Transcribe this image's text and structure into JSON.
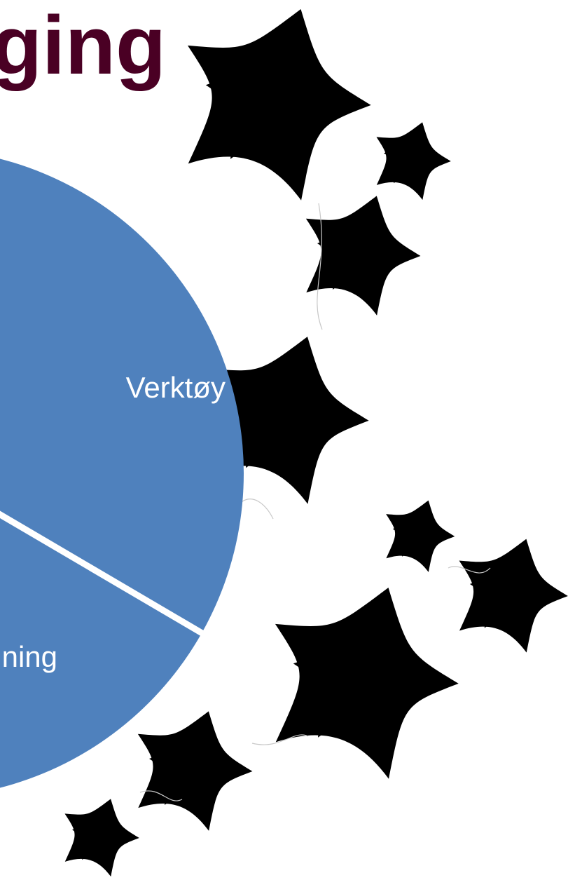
{
  "header": {
    "title": "ging"
  },
  "pie": {
    "labels": [
      "Verktøy",
      "ning"
    ]
  }
}
